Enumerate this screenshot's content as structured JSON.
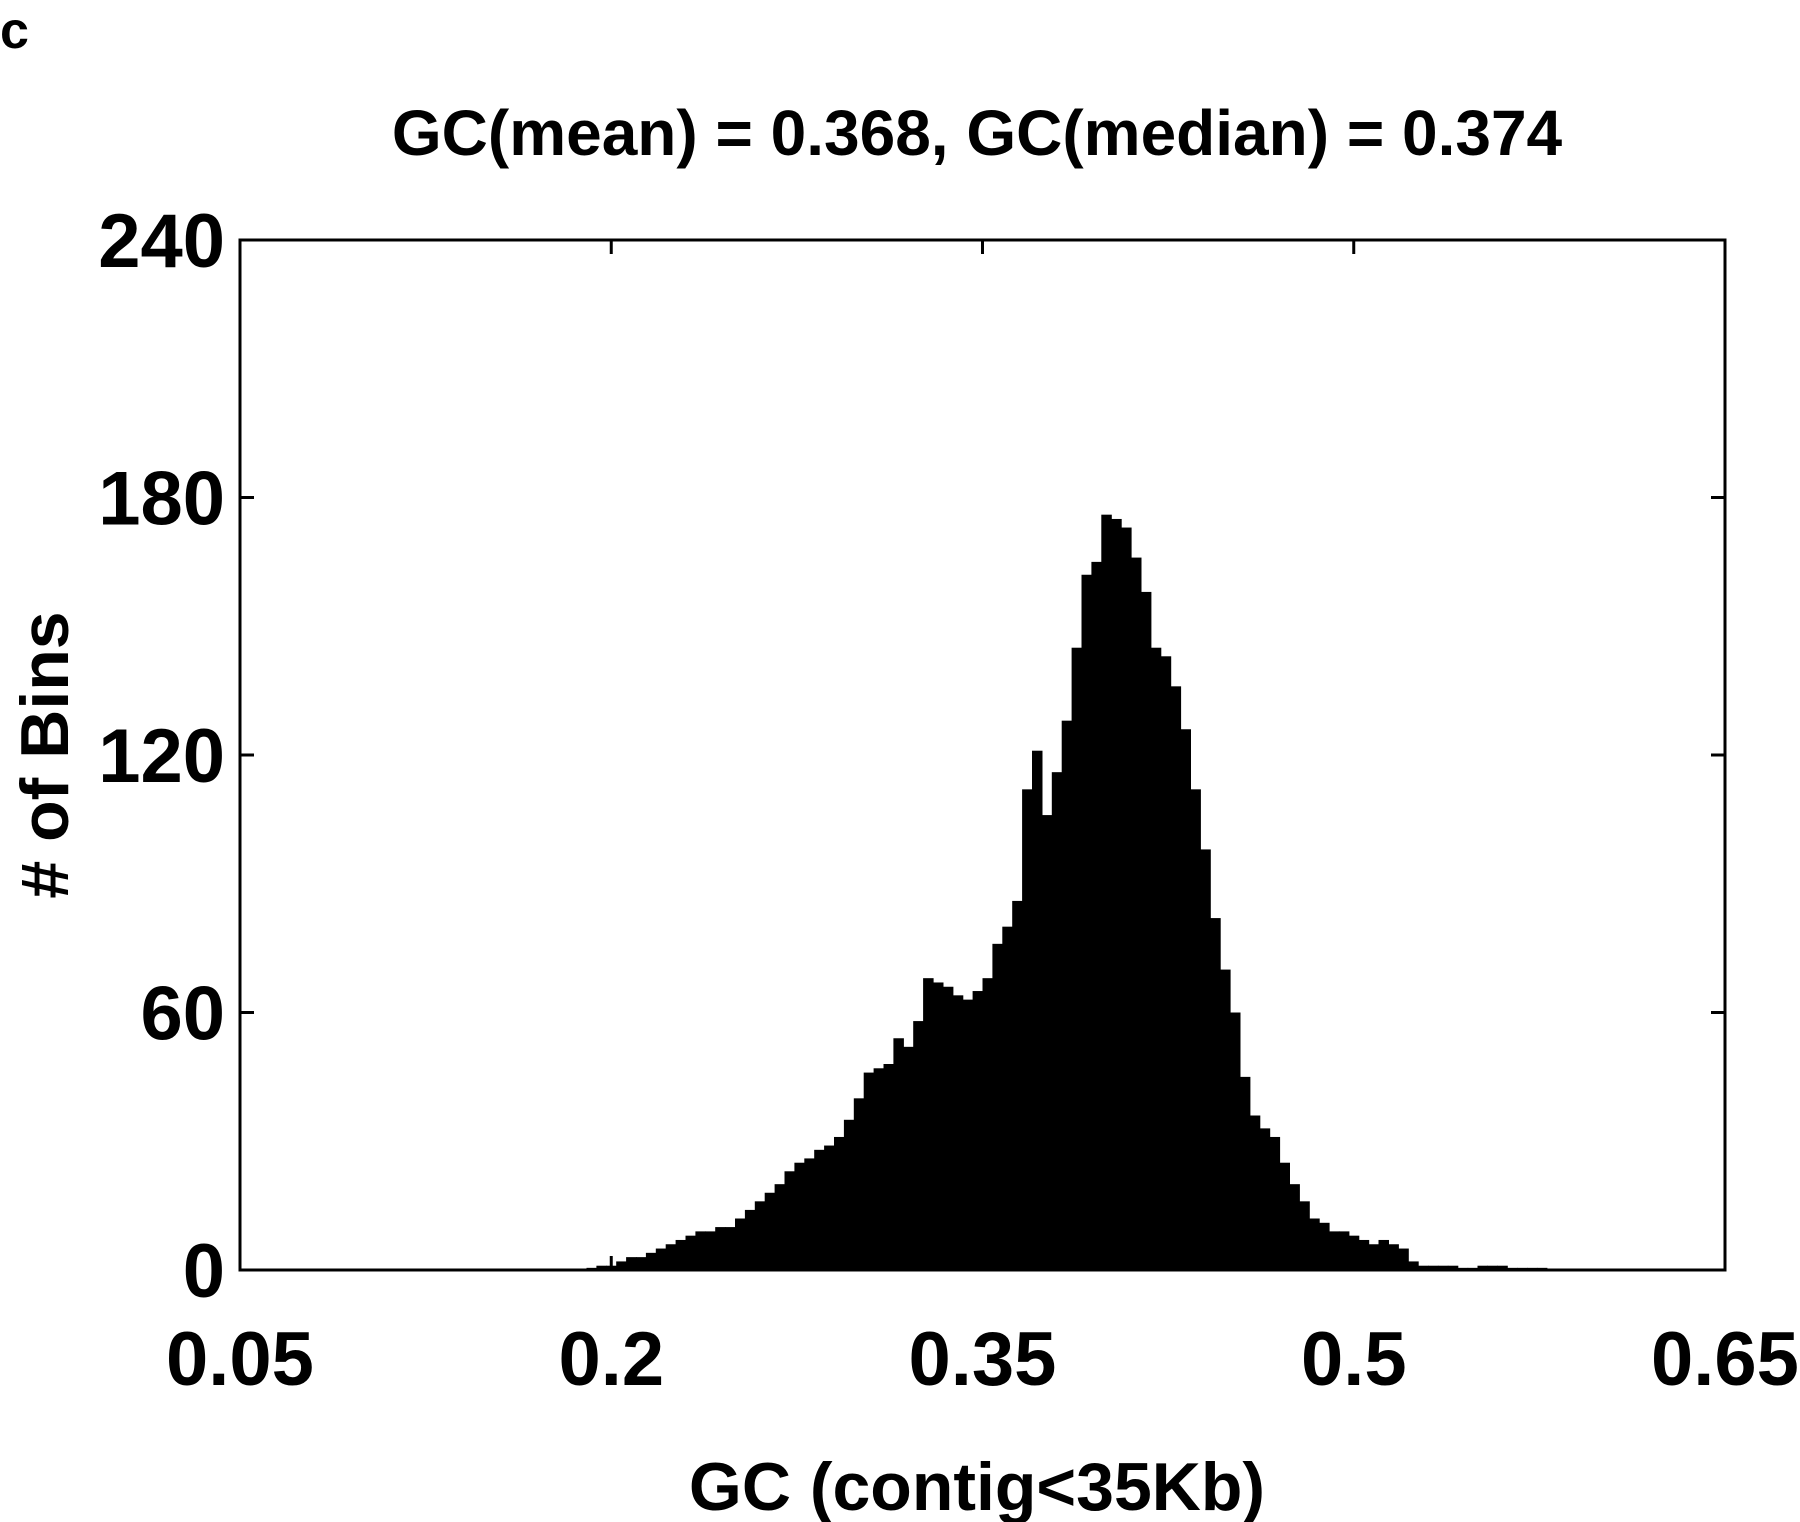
{
  "panel_label": "c",
  "chart_data": {
    "type": "bar",
    "title": "GC(mean) = 0.368, GC(median) = 0.374",
    "xlabel": "GC (contig<35Kb)",
    "ylabel": "# of Bins",
    "xlim": [
      0.05,
      0.65
    ],
    "ylim": [
      0,
      240
    ],
    "xticks": [
      "0.05",
      "0.2",
      "0.35",
      "0.5",
      "0.65"
    ],
    "yticks": [
      "0",
      "60",
      "120",
      "180",
      "240"
    ],
    "bar_color": "#000000",
    "bin_width": 0.004,
    "bins": [
      [
        0.19,
        0.5
      ],
      [
        0.194,
        1
      ],
      [
        0.198,
        1
      ],
      [
        0.202,
        2
      ],
      [
        0.206,
        3
      ],
      [
        0.21,
        3
      ],
      [
        0.214,
        4
      ],
      [
        0.218,
        5
      ],
      [
        0.222,
        6
      ],
      [
        0.226,
        7
      ],
      [
        0.23,
        8
      ],
      [
        0.234,
        9
      ],
      [
        0.238,
        9
      ],
      [
        0.242,
        10
      ],
      [
        0.246,
        10
      ],
      [
        0.25,
        12
      ],
      [
        0.254,
        14
      ],
      [
        0.258,
        16
      ],
      [
        0.262,
        18
      ],
      [
        0.266,
        20
      ],
      [
        0.27,
        23
      ],
      [
        0.274,
        25
      ],
      [
        0.278,
        26
      ],
      [
        0.282,
        28
      ],
      [
        0.286,
        29
      ],
      [
        0.29,
        31
      ],
      [
        0.294,
        35
      ],
      [
        0.298,
        40
      ],
      [
        0.302,
        46
      ],
      [
        0.306,
        47
      ],
      [
        0.31,
        48
      ],
      [
        0.314,
        54
      ],
      [
        0.318,
        52
      ],
      [
        0.322,
        58
      ],
      [
        0.326,
        68
      ],
      [
        0.33,
        67
      ],
      [
        0.334,
        66
      ],
      [
        0.338,
        64
      ],
      [
        0.342,
        63
      ],
      [
        0.346,
        65
      ],
      [
        0.35,
        68
      ],
      [
        0.354,
        76
      ],
      [
        0.358,
        80
      ],
      [
        0.362,
        86
      ],
      [
        0.366,
        112
      ],
      [
        0.37,
        121
      ],
      [
        0.374,
        106
      ],
      [
        0.378,
        116
      ],
      [
        0.382,
        128
      ],
      [
        0.386,
        145
      ],
      [
        0.39,
        162
      ],
      [
        0.394,
        165
      ],
      [
        0.398,
        176
      ],
      [
        0.402,
        175
      ],
      [
        0.406,
        173
      ],
      [
        0.41,
        166
      ],
      [
        0.414,
        158
      ],
      [
        0.418,
        145
      ],
      [
        0.422,
        143
      ],
      [
        0.426,
        136
      ],
      [
        0.43,
        126
      ],
      [
        0.434,
        112
      ],
      [
        0.438,
        98
      ],
      [
        0.442,
        82
      ],
      [
        0.446,
        70
      ],
      [
        0.45,
        60
      ],
      [
        0.454,
        45
      ],
      [
        0.458,
        36
      ],
      [
        0.462,
        33
      ],
      [
        0.466,
        31
      ],
      [
        0.47,
        25
      ],
      [
        0.474,
        20
      ],
      [
        0.478,
        16
      ],
      [
        0.482,
        12
      ],
      [
        0.486,
        11
      ],
      [
        0.49,
        9
      ],
      [
        0.494,
        9
      ],
      [
        0.498,
        8
      ],
      [
        0.502,
        7
      ],
      [
        0.506,
        6
      ],
      [
        0.51,
        7
      ],
      [
        0.514,
        6
      ],
      [
        0.518,
        5
      ],
      [
        0.522,
        2
      ],
      [
        0.526,
        1
      ],
      [
        0.53,
        1
      ],
      [
        0.534,
        1
      ],
      [
        0.538,
        1
      ],
      [
        0.542,
        0.5
      ],
      [
        0.546,
        0.5
      ],
      [
        0.55,
        1
      ],
      [
        0.554,
        1
      ],
      [
        0.558,
        1
      ],
      [
        0.562,
        0.5
      ],
      [
        0.566,
        0.5
      ],
      [
        0.57,
        0.5
      ],
      [
        0.574,
        0.5
      ]
    ]
  }
}
